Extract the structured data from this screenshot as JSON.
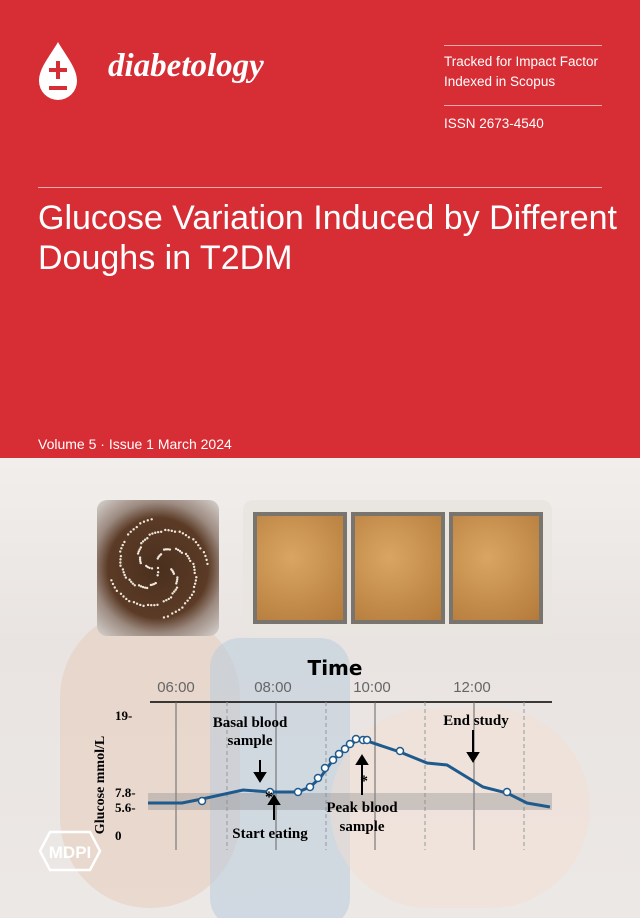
{
  "journal": {
    "name": "diabetology",
    "logo_icon": "blood-drop-plus-minus-icon",
    "tracked": "Tracked for Impact Factor",
    "indexed": "Indexed in Scopus",
    "issn": "ISSN 2673-4540"
  },
  "article": {
    "title": "Glucose Variation Induced by Different Doughs in T2DM"
  },
  "issue": {
    "info": "Volume 5 · Issue 1 March 2024"
  },
  "colors": {
    "brand_red": "#d72d35",
    "curve": "#1f5a8c"
  },
  "figure": {
    "x_title": "Time",
    "x_ticks": [
      "06:00",
      "08:00",
      "10:00",
      "12:00"
    ],
    "y_title": "Glucose mmol/L",
    "y_ticks": [
      "19-",
      "7.8-",
      "5.6-",
      "0"
    ],
    "annotations": {
      "basal": "Basal blood sample",
      "start": "Start eating",
      "peak": "Peak blood sample",
      "end": "End study",
      "asterisk": "*"
    }
  },
  "publisher": {
    "logo": "MDPI"
  }
}
